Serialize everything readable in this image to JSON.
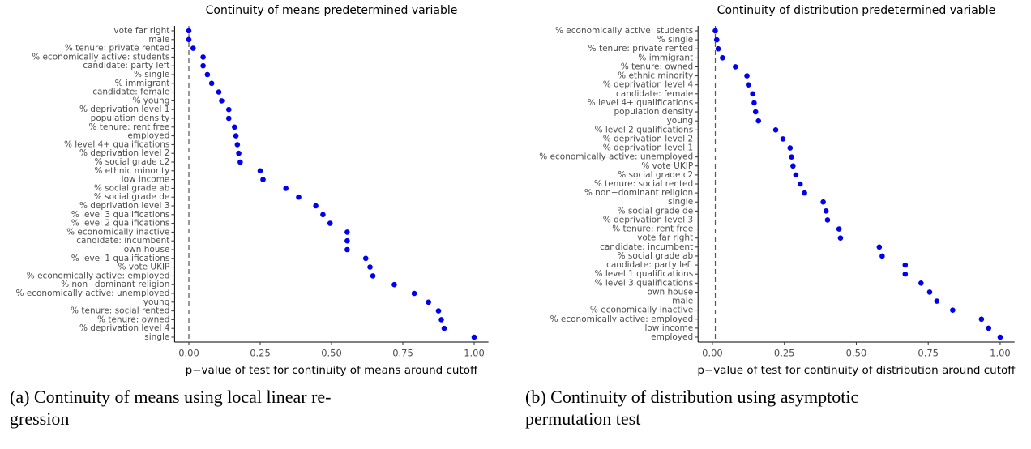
{
  "chart_data": [
    {
      "type": "dot",
      "title": "Continuity of means predetermined variable",
      "x_label": "p−value of test for continuity of means around cutoff",
      "caption": [
        "(a) Continuity of means using local linear re-",
        "gression"
      ],
      "color": "#0000ee",
      "vline": 0,
      "xlim": [
        -0.05,
        1.05
      ],
      "xticks": [
        {
          "value": 0,
          "label": "0.00"
        },
        0.25,
        {
          "value": 0.5,
          "label": "0.50"
        },
        0.75,
        {
          "value": 1,
          "label": "1.00"
        }
      ],
      "categories": [
        "vote far right",
        "male",
        "% tenure: private rented",
        "% economically active: students",
        "candidate: party left",
        "% single",
        "% immigrant",
        "candidate: female",
        "% young",
        "% deprivation level 1",
        "population density",
        "% tenure: rent free",
        "employed",
        "% level 4+ qualifications",
        "% deprivation level 2",
        "% social grade c2",
        "% ethnic minority",
        "low income",
        "% social grade ab",
        "% social grade de",
        "% deprivation level 3",
        "% level 3 qualifications",
        "% level 2 qualifications",
        "% economically inactive",
        "candidate: incumbent",
        "own house",
        "% level 1 qualifications",
        "% vote UKIP",
        "% economically active: employed",
        "% non−dominant religion",
        "% economically active: unemployed",
        "young",
        "% tenure: social rented",
        "% tenure: owned",
        "% deprivation level 4",
        "single"
      ],
      "values": [
        0.0,
        0.0,
        0.015,
        0.05,
        0.05,
        0.065,
        0.08,
        0.105,
        0.115,
        0.14,
        0.14,
        0.16,
        0.165,
        0.17,
        0.175,
        0.18,
        0.25,
        0.26,
        0.34,
        0.385,
        0.445,
        0.47,
        0.495,
        0.555,
        0.555,
        0.555,
        0.62,
        0.635,
        0.645,
        0.72,
        0.79,
        0.84,
        0.875,
        0.885,
        0.895,
        1.0
      ]
    },
    {
      "type": "dot",
      "title": "Continuity of distribution predetermined variable",
      "x_label": "p−value of test for continuity of distribution around cutoff",
      "caption": [
        "(b) Continuity of distribution using asymptotic",
        "permutation test"
      ],
      "color": "#0000ee",
      "vline": 0.01,
      "xlim": [
        -0.05,
        1.05
      ],
      "xticks": [
        {
          "value": 0,
          "label": "0.00"
        },
        0.25,
        {
          "value": 0.5,
          "label": "0.50"
        },
        0.75,
        {
          "value": 1,
          "label": "1.00"
        }
      ],
      "categories": [
        "% economically active: students",
        "% single",
        "% tenure: private rented",
        "% immigrant",
        "% tenure: owned",
        "% ethnic minority",
        "% deprivation level 4",
        "candidate: female",
        "% level 4+ qualifications",
        "population density",
        "young",
        "% level 2 qualifications",
        "% deprivation level 2",
        "% deprivation level 1",
        "% economically active: unemployed",
        "% vote UKIP",
        "% social grade c2",
        "% tenure: social rented",
        "% non−dominant religion",
        "single",
        "% social grade de",
        "% deprivation level 3",
        "% tenure: rent free",
        "vote far right",
        "candidate: incumbent",
        "% social grade ab",
        "candidate: party left",
        "% level 1 qualifications",
        "% level 3 qualifications",
        "own house",
        "male",
        "% economically inactive",
        "% economically active: employed",
        "low income",
        "employed"
      ],
      "values": [
        0.01,
        0.015,
        0.02,
        0.035,
        0.08,
        0.12,
        0.125,
        0.14,
        0.145,
        0.15,
        0.16,
        0.22,
        0.245,
        0.27,
        0.275,
        0.28,
        0.29,
        0.305,
        0.32,
        0.385,
        0.395,
        0.4,
        0.44,
        0.445,
        0.58,
        0.59,
        0.67,
        0.67,
        0.725,
        0.755,
        0.78,
        0.835,
        0.935,
        0.96,
        1.0
      ]
    }
  ]
}
